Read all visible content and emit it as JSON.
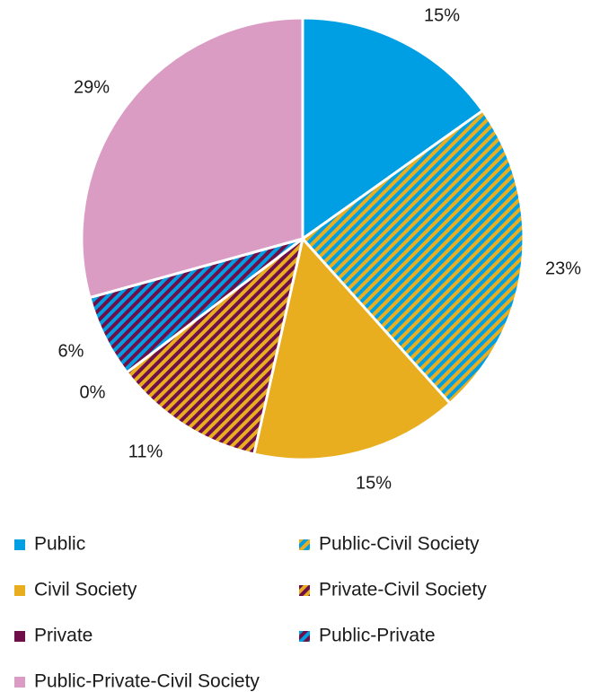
{
  "chart_data": {
    "type": "pie",
    "slices": [
      {
        "name": "Public",
        "value": 15,
        "label": "15%",
        "color": "#009FE3",
        "pattern": "solid"
      },
      {
        "name": "Public-Civil Society",
        "value": 23,
        "label": "23%",
        "color": "#E8AE20",
        "stripe_color": "#009FE3",
        "pattern": "stripes"
      },
      {
        "name": "Civil Society",
        "value": 15,
        "label": "15%",
        "color": "#E8AE20",
        "pattern": "solid"
      },
      {
        "name": "Private-Civil Society",
        "value": 11,
        "label": "11%",
        "color": "#E8AE20",
        "stripe_color": "#6E0F4A",
        "pattern": "stripes"
      },
      {
        "name": "Private",
        "value": 0,
        "label": "0%",
        "color": "#6E0F4A",
        "pattern": "solid"
      },
      {
        "name": "Public-Private",
        "value": 6,
        "label": "6%",
        "color": "#009FE3",
        "stripe_color": "#6E0F4A",
        "pattern": "stripes"
      },
      {
        "name": "Public-Private-Civil Society",
        "value": 29,
        "label": "29%",
        "color": "#DB9CC4",
        "pattern": "solid"
      }
    ],
    "legend": {
      "position": "bottom",
      "columns": 2,
      "order": [
        "Public",
        "Public-Civil Society",
        "Civil Society",
        "Private-Civil Society",
        "Private",
        "Public-Private",
        "Public-Private-Civil Society"
      ]
    }
  }
}
